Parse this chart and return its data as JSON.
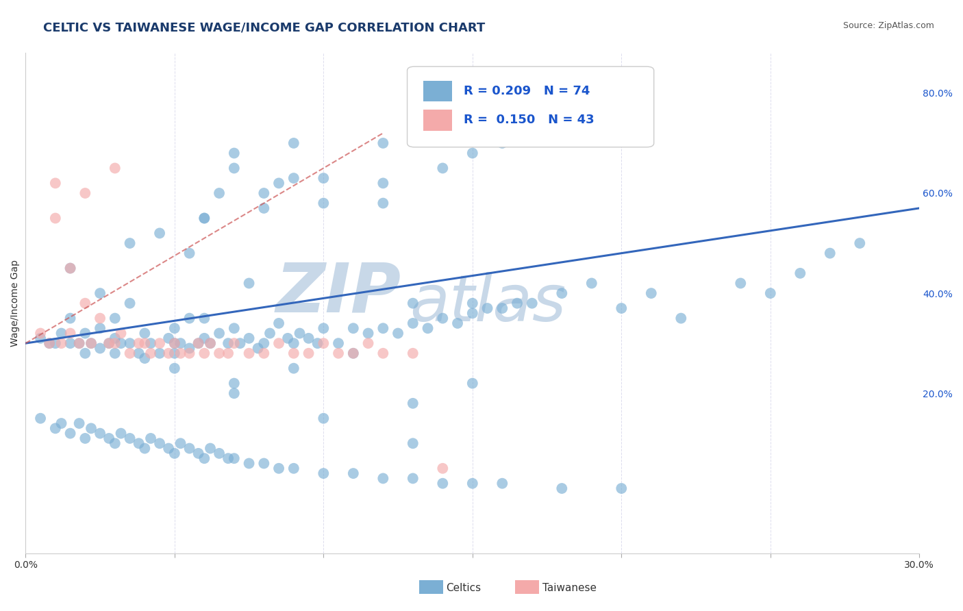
{
  "title": "CELTIC VS TAIWANESE WAGE/INCOME GAP CORRELATION CHART",
  "source": "Source: ZipAtlas.com",
  "ylabel": "Wage/Income Gap",
  "xlim": [
    0.0,
    0.3
  ],
  "ylim": [
    -0.12,
    0.88
  ],
  "yticks_right": [
    0.2,
    0.4,
    0.6,
    0.8
  ],
  "ytick_right_labels": [
    "20.0%",
    "40.0%",
    "60.0%",
    "80.0%"
  ],
  "celtics_R": 0.209,
  "celtics_N": 74,
  "taiwanese_R": 0.15,
  "taiwanese_N": 43,
  "celtics_color": "#7BAFD4",
  "taiwanese_color": "#F4AAAA",
  "celtics_line_color": "#3366BB",
  "taiwanese_line_color": "#CC5555",
  "title_color": "#1A3A6B",
  "source_color": "#555555",
  "watermark_color": "#C8D8E8",
  "legend_label_color": "#1A55CC",
  "bg_color": "#FFFFFF",
  "grid_color": "#DDDDEE",
  "title_fontsize": 13,
  "tick_fontsize": 10,
  "celtics_scatter_x": [
    0.005,
    0.008,
    0.01,
    0.012,
    0.015,
    0.015,
    0.018,
    0.02,
    0.02,
    0.022,
    0.025,
    0.025,
    0.028,
    0.03,
    0.03,
    0.03,
    0.032,
    0.035,
    0.038,
    0.04,
    0.04,
    0.042,
    0.045,
    0.048,
    0.05,
    0.05,
    0.05,
    0.052,
    0.055,
    0.058,
    0.06,
    0.06,
    0.062,
    0.065,
    0.068,
    0.07,
    0.072,
    0.075,
    0.078,
    0.08,
    0.082,
    0.085,
    0.088,
    0.09,
    0.092,
    0.095,
    0.098,
    0.1,
    0.105,
    0.11,
    0.115,
    0.12,
    0.125,
    0.13,
    0.135,
    0.14,
    0.145,
    0.15,
    0.155,
    0.16,
    0.165,
    0.17,
    0.18,
    0.19,
    0.2,
    0.21,
    0.22,
    0.24,
    0.25,
    0.26,
    0.28,
    0.13,
    0.15,
    0.27
  ],
  "celtics_scatter_y": [
    0.31,
    0.3,
    0.3,
    0.32,
    0.3,
    0.35,
    0.3,
    0.28,
    0.32,
    0.3,
    0.29,
    0.33,
    0.3,
    0.28,
    0.31,
    0.35,
    0.3,
    0.3,
    0.28,
    0.27,
    0.32,
    0.3,
    0.28,
    0.31,
    0.28,
    0.3,
    0.33,
    0.3,
    0.29,
    0.3,
    0.31,
    0.35,
    0.3,
    0.32,
    0.3,
    0.33,
    0.3,
    0.31,
    0.29,
    0.3,
    0.32,
    0.34,
    0.31,
    0.3,
    0.32,
    0.31,
    0.3,
    0.33,
    0.3,
    0.33,
    0.32,
    0.33,
    0.32,
    0.34,
    0.33,
    0.35,
    0.34,
    0.36,
    0.37,
    0.37,
    0.38,
    0.38,
    0.4,
    0.42,
    0.37,
    0.4,
    0.35,
    0.42,
    0.4,
    0.44,
    0.5,
    0.38,
    0.38,
    0.48
  ],
  "celtics_scatter_x2": [
    0.005,
    0.01,
    0.012,
    0.015,
    0.018,
    0.02,
    0.022,
    0.025,
    0.028,
    0.03,
    0.032,
    0.035,
    0.038,
    0.04,
    0.042,
    0.045,
    0.048,
    0.05,
    0.052,
    0.055,
    0.058,
    0.06,
    0.062,
    0.065,
    0.068,
    0.07,
    0.075,
    0.08,
    0.085,
    0.09,
    0.1,
    0.11,
    0.12,
    0.13,
    0.14,
    0.15,
    0.16,
    0.18,
    0.2,
    0.06,
    0.08,
    0.1,
    0.12,
    0.07,
    0.09,
    0.025,
    0.015,
    0.035,
    0.055,
    0.075,
    0.055,
    0.035,
    0.07,
    0.09,
    0.045,
    0.06,
    0.08,
    0.12,
    0.065,
    0.085,
    0.1,
    0.14,
    0.15,
    0.12,
    0.16,
    0.05,
    0.07,
    0.1,
    0.13,
    0.13,
    0.15,
    0.07,
    0.09,
    0.11
  ],
  "celtics_scatter_y2": [
    0.15,
    0.13,
    0.14,
    0.12,
    0.14,
    0.11,
    0.13,
    0.12,
    0.11,
    0.1,
    0.12,
    0.11,
    0.1,
    0.09,
    0.11,
    0.1,
    0.09,
    0.08,
    0.1,
    0.09,
    0.08,
    0.07,
    0.09,
    0.08,
    0.07,
    0.07,
    0.06,
    0.06,
    0.05,
    0.05,
    0.04,
    0.04,
    0.03,
    0.03,
    0.02,
    0.02,
    0.02,
    0.01,
    0.01,
    0.55,
    0.6,
    0.58,
    0.62,
    0.65,
    0.63,
    0.4,
    0.45,
    0.5,
    0.48,
    0.42,
    0.35,
    0.38,
    0.68,
    0.7,
    0.52,
    0.55,
    0.57,
    0.58,
    0.6,
    0.62,
    0.63,
    0.65,
    0.68,
    0.7,
    0.7,
    0.25,
    0.2,
    0.15,
    0.1,
    0.18,
    0.22,
    0.22,
    0.25,
    0.28
  ],
  "taiwanese_scatter_x": [
    0.005,
    0.008,
    0.01,
    0.012,
    0.015,
    0.015,
    0.018,
    0.02,
    0.022,
    0.025,
    0.028,
    0.03,
    0.032,
    0.035,
    0.038,
    0.04,
    0.042,
    0.045,
    0.048,
    0.05,
    0.052,
    0.055,
    0.058,
    0.06,
    0.062,
    0.065,
    0.068,
    0.07,
    0.075,
    0.08,
    0.085,
    0.09,
    0.095,
    0.1,
    0.105,
    0.11,
    0.115,
    0.12,
    0.13,
    0.14,
    0.01,
    0.02,
    0.03
  ],
  "taiwanese_scatter_y": [
    0.32,
    0.3,
    0.55,
    0.3,
    0.32,
    0.45,
    0.3,
    0.38,
    0.3,
    0.35,
    0.3,
    0.3,
    0.32,
    0.28,
    0.3,
    0.3,
    0.28,
    0.3,
    0.28,
    0.3,
    0.28,
    0.28,
    0.3,
    0.28,
    0.3,
    0.28,
    0.28,
    0.3,
    0.28,
    0.28,
    0.3,
    0.28,
    0.28,
    0.3,
    0.28,
    0.28,
    0.3,
    0.28,
    0.28,
    0.05,
    0.62,
    0.6,
    0.65
  ],
  "celtics_line_x": [
    0.0,
    0.3
  ],
  "celtics_line_y": [
    0.3,
    0.57
  ],
  "taiwanese_line_x": [
    0.0,
    0.12
  ],
  "taiwanese_line_y": [
    0.3,
    0.72
  ]
}
